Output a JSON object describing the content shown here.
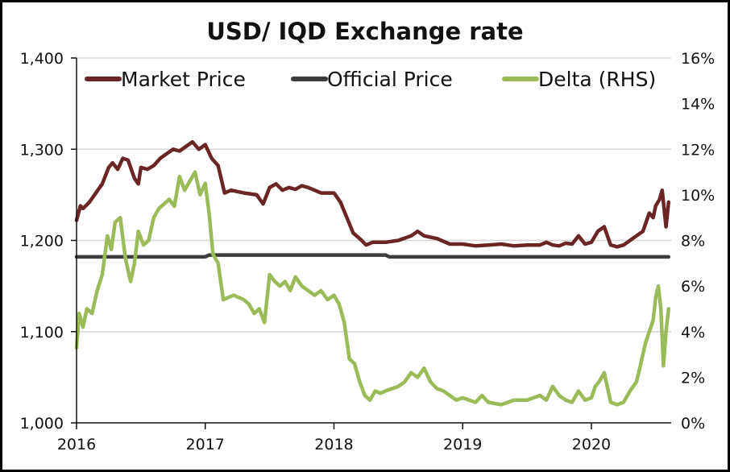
{
  "chart_data": {
    "type": "line",
    "title": "USD/ IQD Exchange rate",
    "x_range": [
      2016.0,
      2020.62
    ],
    "x_ticks": [
      "2016",
      "2017",
      "2018",
      "2019",
      "2020"
    ],
    "y_left": {
      "range": [
        1000,
        1400
      ],
      "ticks": [
        "1,000",
        "1,100",
        "1,200",
        "1,300",
        "1,400"
      ]
    },
    "y_right": {
      "range": [
        0,
        16
      ],
      "unit": "%",
      "ticks": [
        "0%",
        "2%",
        "4%",
        "6%",
        "8%",
        "10%",
        "12%",
        "14%",
        "16%"
      ]
    },
    "grid": "horizontal",
    "legend_position": "top",
    "series": [
      {
        "name": "Market Price",
        "axis": "left",
        "color": "#6b2525",
        "x": [
          2016.0,
          2016.03,
          2016.05,
          2016.1,
          2016.15,
          2016.2,
          2016.25,
          2016.28,
          2016.32,
          2016.36,
          2016.4,
          2016.45,
          2016.48,
          2016.5,
          2016.55,
          2016.6,
          2016.65,
          2016.7,
          2016.75,
          2016.8,
          2016.85,
          2016.9,
          2016.95,
          2017.0,
          2017.05,
          2017.1,
          2017.15,
          2017.2,
          2017.3,
          2017.4,
          2017.45,
          2017.5,
          2017.55,
          2017.6,
          2017.65,
          2017.7,
          2017.75,
          2017.8,
          2017.9,
          2018.0,
          2018.05,
          2018.1,
          2018.15,
          2018.2,
          2018.25,
          2018.3,
          2018.4,
          2018.5,
          2018.6,
          2018.65,
          2018.7,
          2018.8,
          2018.9,
          2019.0,
          2019.1,
          2019.2,
          2019.3,
          2019.4,
          2019.5,
          2019.6,
          2019.65,
          2019.7,
          2019.75,
          2019.8,
          2019.85,
          2019.9,
          2019.95,
          2020.0,
          2020.05,
          2020.1,
          2020.15,
          2020.2,
          2020.25,
          2020.3,
          2020.35,
          2020.4,
          2020.45,
          2020.48,
          2020.5,
          2020.53,
          2020.55,
          2020.58,
          2020.6
        ],
        "values": [
          1222,
          1238,
          1235,
          1242,
          1252,
          1262,
          1280,
          1285,
          1278,
          1290,
          1288,
          1268,
          1262,
          1280,
          1278,
          1282,
          1290,
          1295,
          1300,
          1298,
          1303,
          1308,
          1300,
          1305,
          1290,
          1282,
          1252,
          1255,
          1252,
          1250,
          1240,
          1258,
          1262,
          1255,
          1258,
          1256,
          1260,
          1258,
          1252,
          1252,
          1242,
          1225,
          1208,
          1202,
          1195,
          1198,
          1198,
          1200,
          1205,
          1210,
          1205,
          1202,
          1196,
          1196,
          1194,
          1195,
          1196,
          1194,
          1195,
          1195,
          1198,
          1195,
          1194,
          1197,
          1196,
          1205,
          1196,
          1198,
          1210,
          1215,
          1195,
          1193,
          1195,
          1200,
          1205,
          1210,
          1230,
          1225,
          1238,
          1245,
          1255,
          1215,
          1242
        ]
      },
      {
        "name": "Official Price",
        "axis": "left",
        "color": "#3d3d3d",
        "x": [
          2016.0,
          2017.0,
          2017.03,
          2018.4,
          2018.43,
          2020.6
        ],
        "values": [
          1182,
          1182,
          1184,
          1184,
          1182,
          1182
        ]
      },
      {
        "name": "Delta (RHS)",
        "axis": "right",
        "color": "#9bbb59",
        "x": [
          2016.0,
          2016.02,
          2016.05,
          2016.08,
          2016.12,
          2016.16,
          2016.2,
          2016.24,
          2016.27,
          2016.3,
          2016.34,
          2016.38,
          2016.42,
          2016.45,
          2016.48,
          2016.52,
          2016.56,
          2016.6,
          2016.64,
          2016.68,
          2016.72,
          2016.76,
          2016.8,
          2016.84,
          2016.88,
          2016.92,
          2016.96,
          2017.0,
          2017.03,
          2017.06,
          2017.1,
          2017.14,
          2017.18,
          2017.22,
          2017.26,
          2017.3,
          2017.34,
          2017.38,
          2017.42,
          2017.46,
          2017.5,
          2017.54,
          2017.58,
          2017.62,
          2017.66,
          2017.7,
          2017.75,
          2017.8,
          2017.85,
          2017.9,
          2017.95,
          2018.0,
          2018.04,
          2018.08,
          2018.12,
          2018.16,
          2018.2,
          2018.24,
          2018.28,
          2018.32,
          2018.36,
          2018.4,
          2018.45,
          2018.5,
          2018.55,
          2018.6,
          2018.65,
          2018.7,
          2018.75,
          2018.8,
          2018.85,
          2018.9,
          2018.95,
          2019.0,
          2019.05,
          2019.1,
          2019.15,
          2019.2,
          2019.3,
          2019.4,
          2019.5,
          2019.6,
          2019.65,
          2019.7,
          2019.75,
          2019.8,
          2019.85,
          2019.9,
          2019.95,
          2020.0,
          2020.03,
          2020.06,
          2020.1,
          2020.15,
          2020.2,
          2020.25,
          2020.3,
          2020.35,
          2020.38,
          2020.42,
          2020.45,
          2020.48,
          2020.5,
          2020.52,
          2020.54,
          2020.56,
          2020.58,
          2020.6
        ],
        "values": [
          3.3,
          4.8,
          4.2,
          5.0,
          4.8,
          5.8,
          6.5,
          8.2,
          7.6,
          8.8,
          9.0,
          7.2,
          6.2,
          7.0,
          8.4,
          7.8,
          8.0,
          9.0,
          9.4,
          9.6,
          9.8,
          9.5,
          10.8,
          10.2,
          10.6,
          11.0,
          10.0,
          10.5,
          9.2,
          7.4,
          7.0,
          5.4,
          5.5,
          5.6,
          5.5,
          5.4,
          5.2,
          4.8,
          5.0,
          4.4,
          6.5,
          6.2,
          6.0,
          6.2,
          5.8,
          6.4,
          6.0,
          5.8,
          5.6,
          5.8,
          5.4,
          5.6,
          5.2,
          4.4,
          2.8,
          2.6,
          1.8,
          1.2,
          1.0,
          1.4,
          1.3,
          1.4,
          1.5,
          1.6,
          1.8,
          2.2,
          2.0,
          2.4,
          1.8,
          1.5,
          1.4,
          1.2,
          1.0,
          1.1,
          1.0,
          0.9,
          1.2,
          0.9,
          0.8,
          1.0,
          1.0,
          1.2,
          1.0,
          1.6,
          1.2,
          1.0,
          0.9,
          1.4,
          1.0,
          1.1,
          1.6,
          1.8,
          2.2,
          0.9,
          0.8,
          0.9,
          1.4,
          1.8,
          2.5,
          3.5,
          4.0,
          4.5,
          5.5,
          6.0,
          5.0,
          2.5,
          4.0,
          5.0
        ]
      }
    ]
  }
}
